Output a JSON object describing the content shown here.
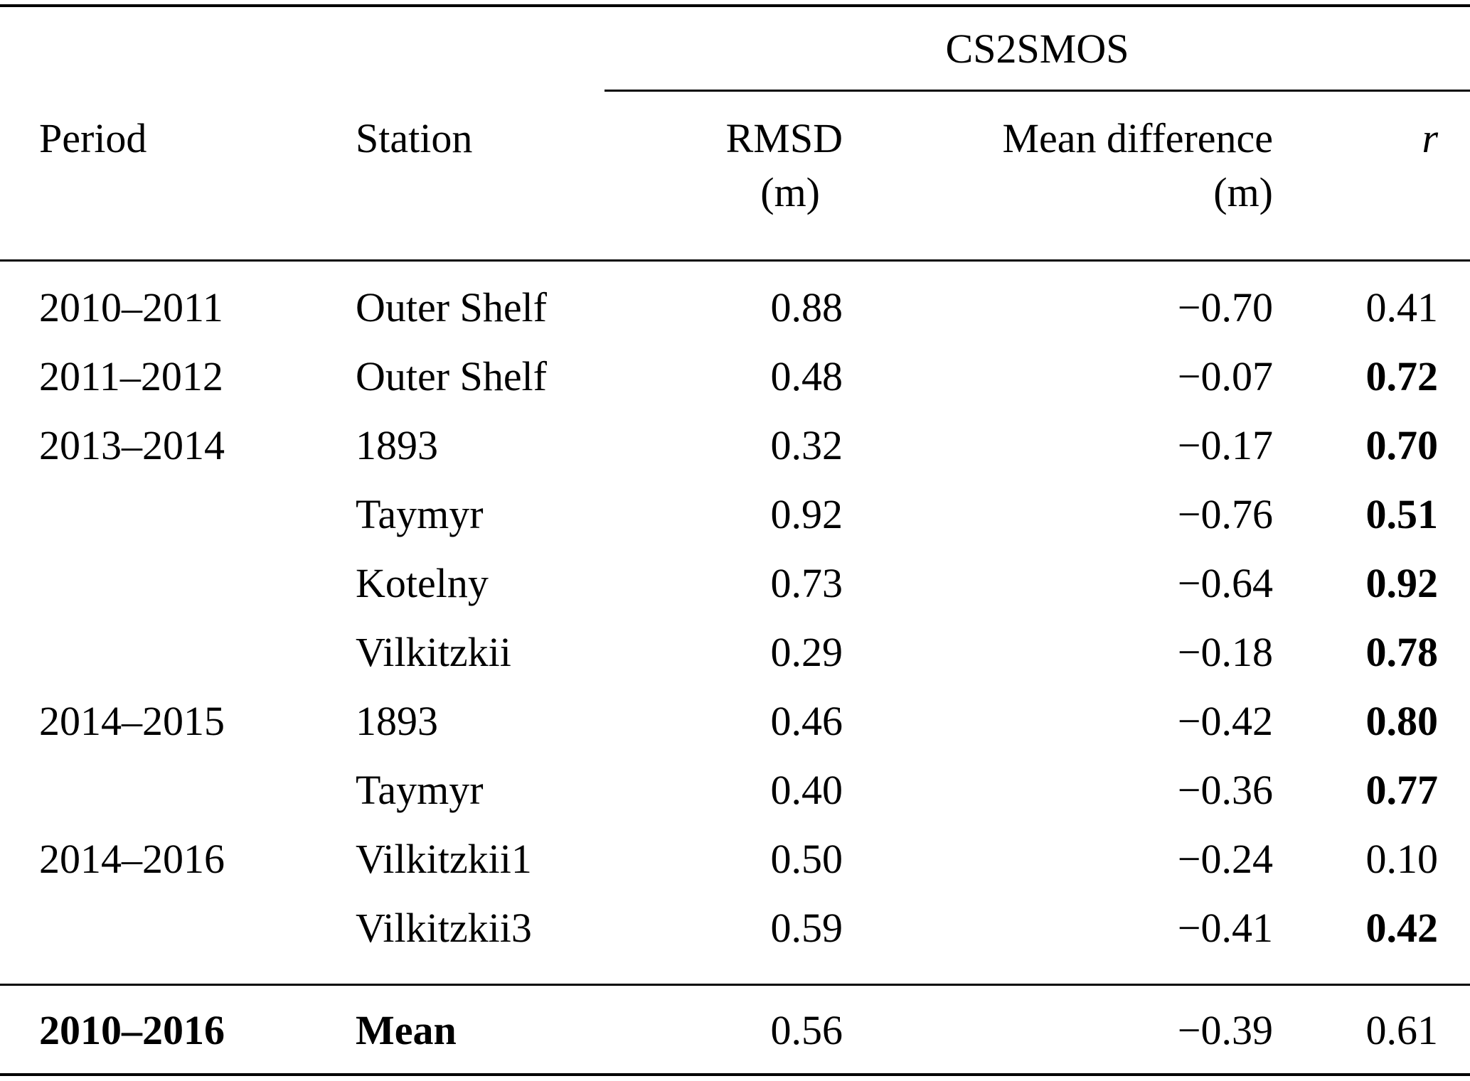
{
  "table": {
    "span_header": "CS2SMOS",
    "headers": {
      "period": "Period",
      "station": "Station",
      "rmsd": "RMSD",
      "rmsd_unit": "(m)",
      "mean_difference": "Mean difference",
      "mean_difference_unit": "(m)",
      "r": "r"
    },
    "rows": [
      {
        "period": "2010–2011",
        "station": "Outer Shelf",
        "rmsd": "0.88",
        "mean_diff": "−0.70",
        "r": "0.41",
        "r_bold": false
      },
      {
        "period": "2011–2012",
        "station": "Outer Shelf",
        "rmsd": "0.48",
        "mean_diff": "−0.07",
        "r": "0.72",
        "r_bold": true
      },
      {
        "period": "2013–2014",
        "station": "1893",
        "rmsd": "0.32",
        "mean_diff": "−0.17",
        "r": "0.70",
        "r_bold": true
      },
      {
        "period": "",
        "station": "Taymyr",
        "rmsd": "0.92",
        "mean_diff": "−0.76",
        "r": "0.51",
        "r_bold": true
      },
      {
        "period": "",
        "station": "Kotelny",
        "rmsd": "0.73",
        "mean_diff": "−0.64",
        "r": "0.92",
        "r_bold": true
      },
      {
        "period": "",
        "station": "Vilkitzkii",
        "rmsd": "0.29",
        "mean_diff": "−0.18",
        "r": "0.78",
        "r_bold": true
      },
      {
        "period": "2014–2015",
        "station": "1893",
        "rmsd": "0.46",
        "mean_diff": "−0.42",
        "r": "0.80",
        "r_bold": true
      },
      {
        "period": "",
        "station": "Taymyr",
        "rmsd": "0.40",
        "mean_diff": "−0.36",
        "r": "0.77",
        "r_bold": true
      },
      {
        "period": "2014–2016",
        "station": "Vilkitzkii1",
        "rmsd": "0.50",
        "mean_diff": "−0.24",
        "r": "0.10",
        "r_bold": false
      },
      {
        "period": "",
        "station": "Vilkitzkii3",
        "rmsd": "0.59",
        "mean_diff": "−0.41",
        "r": "0.42",
        "r_bold": true
      }
    ],
    "summary": {
      "period": "2010–2016",
      "station": "Mean",
      "rmsd": "0.56",
      "mean_diff": "−0.39",
      "r": "0.61",
      "r_bold": false
    }
  }
}
